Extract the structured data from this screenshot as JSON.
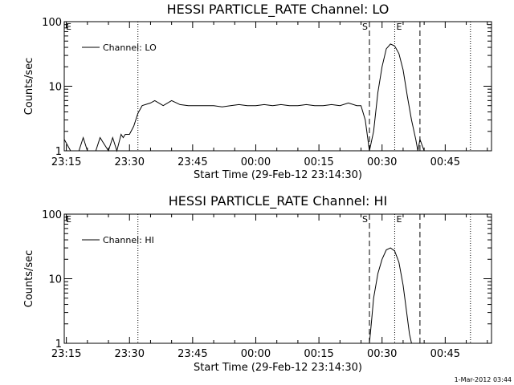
{
  "footer_timestamp": "1-Mar-2012 03:44",
  "x_tick_labels": [
    "23:15",
    "23:30",
    "23:45",
    "00:00",
    "00:15",
    "00:30",
    "00:45"
  ],
  "chart_data": [
    {
      "type": "line",
      "title": "HESSI PARTICLE_RATE Channel: LO",
      "xlabel": "Start Time (29-Feb-12 23:14:30)",
      "ylabel": "Counts/sec",
      "yscale": "log",
      "ylim": [
        1,
        100
      ],
      "y_tick_labels": [
        "1",
        "10",
        "100"
      ],
      "x_range": [
        "23:14:30",
        "00:56:00"
      ],
      "legend": "Channel: LO",
      "legend_position": "top-left",
      "markers": {
        "S": "00:27",
        "E": "00:33"
      },
      "dashed_lines": [
        "00:27",
        "00:39"
      ],
      "dotted_lines": [
        "23:32",
        "00:33",
        "00:51"
      ],
      "series": [
        {
          "name": "Channel: LO",
          "x": [
            "23:14:30",
            "23:16",
            "23:18",
            "23:19",
            "23:20",
            "23:22",
            "23:23",
            "23:25",
            "23:26",
            "23:27",
            "23:28",
            "23:28:30",
            "23:29",
            "23:30",
            "23:31",
            "23:32",
            "23:33",
            "23:35",
            "23:36",
            "23:38",
            "23:40",
            "23:42",
            "23:44",
            "23:46",
            "23:48",
            "23:50",
            "23:52",
            "23:54",
            "23:56",
            "23:58",
            "00:00",
            "00:02",
            "00:04",
            "00:06",
            "00:08",
            "00:10",
            "00:12",
            "00:14",
            "00:16",
            "00:18",
            "00:20",
            "00:22",
            "00:24",
            "00:25",
            "00:26",
            "00:27",
            "00:28",
            "00:29",
            "00:30",
            "00:31",
            "00:32",
            "00:33",
            "00:34",
            "00:35",
            "00:36",
            "00:37",
            "00:38",
            "00:38:30",
            "00:39",
            "00:40"
          ],
          "values": [
            1.5,
            1,
            1,
            1.6,
            1,
            1,
            1.6,
            1,
            1.6,
            1,
            1.8,
            1.6,
            1.8,
            1.8,
            2.4,
            3.8,
            5,
            5.5,
            6,
            5,
            6,
            5.2,
            5,
            5,
            5,
            5,
            4.8,
            5,
            5.2,
            5,
            5,
            5.2,
            5,
            5.2,
            5,
            5,
            5.2,
            5,
            5,
            5.2,
            5,
            5.5,
            5,
            5,
            3,
            1,
            2,
            8,
            20,
            38,
            45,
            42,
            32,
            18,
            7,
            3,
            1.5,
            1,
            1.5,
            1
          ]
        }
      ]
    },
    {
      "type": "line",
      "title": "HESSI PARTICLE_RATE Channel: HI",
      "xlabel": "Start Time (29-Feb-12 23:14:30)",
      "ylabel": "Counts/sec",
      "yscale": "log",
      "ylim": [
        1,
        100
      ],
      "y_tick_labels": [
        "1",
        "10",
        "100"
      ],
      "x_range": [
        "23:14:30",
        "00:56:00"
      ],
      "legend": "Channel: HI",
      "legend_position": "top-left",
      "markers": {
        "S": "00:27",
        "E": "00:33"
      },
      "dashed_lines": [
        "00:27",
        "00:39"
      ],
      "dotted_lines": [
        "23:32",
        "00:33",
        "00:51"
      ],
      "series": [
        {
          "name": "Channel: HI",
          "x": [
            "00:27",
            "00:27:30",
            "00:28",
            "00:29",
            "00:30",
            "00:31",
            "00:32",
            "00:33",
            "00:34",
            "00:35",
            "00:36",
            "00:36:30",
            "00:37"
          ],
          "values": [
            1,
            2.2,
            5,
            12,
            20,
            28,
            30,
            27,
            18,
            8,
            2.5,
            1.4,
            1
          ]
        }
      ]
    }
  ]
}
